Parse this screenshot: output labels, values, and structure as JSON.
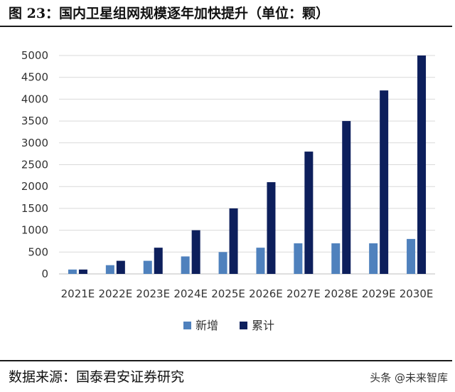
{
  "header": {
    "title": "图 23：国内卫星组网规模逐年加快提升（单位：颗）"
  },
  "footer": {
    "source": "数据来源：国泰君安证券研究",
    "watermark": "头条 @未来智库"
  },
  "chart_data": {
    "type": "bar",
    "categories": [
      "2021E",
      "2022E",
      "2023E",
      "2024E",
      "2025E",
      "2026E",
      "2027E",
      "2028E",
      "2029E",
      "2030E"
    ],
    "series": [
      {
        "name": "新增",
        "values": [
          100,
          200,
          300,
          400,
          500,
          600,
          700,
          700,
          700,
          800
        ],
        "color": "#4f81bd"
      },
      {
        "name": "累计",
        "values": [
          100,
          300,
          600,
          1000,
          1500,
          2100,
          2800,
          3500,
          4200,
          5000
        ],
        "color": "#0d1f5c"
      }
    ],
    "ylim": [
      0,
      5000
    ],
    "yticks": [
      0,
      500,
      1000,
      1500,
      2000,
      2500,
      3000,
      3500,
      4000,
      4500,
      5000
    ],
    "grid": true,
    "legend": "bottom-center"
  }
}
